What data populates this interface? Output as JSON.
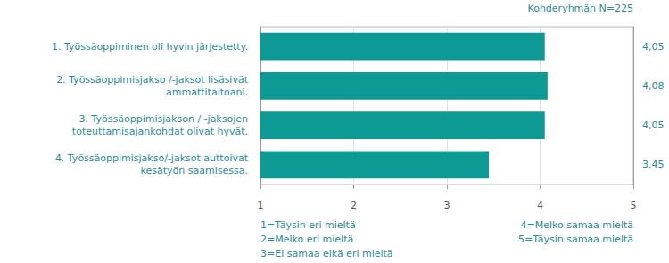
{
  "chart_data": {
    "type": "bar",
    "orientation": "horizontal",
    "subtitle": "Kohderyhmän N=225",
    "categories": [
      "1. Työssäoppiminen oli hyvin järjestetty.",
      "2. Työssäoppimisjakso /-jaksot lisäsivät\nammattitaitoani.",
      "3. Työssäoppimisjakson / -jaksojen\ntoteuttamisajankohdat olivat hyvät.",
      "4. Työssäoppimisjakso/-jaksot auttoivat\nkesätyön saamisessa."
    ],
    "values": [
      4.05,
      4.08,
      4.05,
      3.45
    ],
    "value_labels": [
      "4,05",
      "4,08",
      "4,05",
      "3,45"
    ],
    "data_labels": true,
    "color": "#0e9a94",
    "xlim": [
      1,
      5
    ],
    "xticks": [
      1,
      2,
      3,
      4,
      5
    ],
    "grid": true,
    "annotations": [
      "1=Täysin eri mieltä",
      "2=Melko eri mieltä",
      "3=Ei samaa eikä eri mieltä",
      "4=Melko samaa mieltä",
      "5=Täysin samaa mieltä"
    ]
  }
}
